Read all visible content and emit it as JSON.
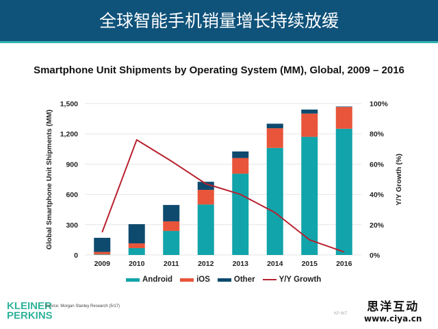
{
  "header": {
    "title": "全球智能手机销量增长持续放缓"
  },
  "footer": {
    "logo_line1": "KLEINER",
    "logo_line2": "PERKINS",
    "source": "Source: Morgan Stanley Research (5/17)",
    "page_tag": "KP INT",
    "watermark_cn": "思洋互动",
    "watermark_url": "www.ciya.cn"
  },
  "colors": {
    "header_bg": "#0f527a",
    "android": "#11a4aa",
    "ios": "#e8553a",
    "other": "#0d4a6e",
    "growth": "#b8202e",
    "brand": "#2fb39a"
  },
  "chart_data": {
    "type": "bar",
    "stacked": true,
    "title": "Smartphone Unit Shipments by Operating System (MM), Global, 2009 – 2016",
    "xlabel": "",
    "ylabel": "Global Smartphone Unit Shipments (MM)",
    "y2label": "Y/Y Growth (%)",
    "categories": [
      "2009",
      "2010",
      "2011",
      "2012",
      "2013",
      "2014",
      "2015",
      "2016"
    ],
    "ylim": [
      0,
      1500
    ],
    "yticks": [
      "0",
      "300",
      "600",
      "900",
      "1,200",
      "1,500"
    ],
    "y2lim": [
      0,
      100
    ],
    "y2ticks": [
      "0%",
      "20%",
      "40%",
      "60%",
      "80%",
      "100%"
    ],
    "grid": true,
    "legend_position": "bottom",
    "series": [
      {
        "name": "Android",
        "axis": "left",
        "kind": "bar",
        "values": [
          5,
          68,
          238,
          500,
          805,
          1060,
          1170,
          1250
        ]
      },
      {
        "name": "iOS",
        "axis": "left",
        "kind": "bar",
        "values": [
          25,
          47,
          95,
          145,
          155,
          195,
          230,
          215
        ]
      },
      {
        "name": "Other",
        "axis": "left",
        "kind": "bar",
        "values": [
          140,
          190,
          162,
          80,
          65,
          45,
          40,
          5
        ]
      },
      {
        "name": "Y/Y Growth",
        "axis": "right",
        "kind": "line",
        "values": [
          15,
          76,
          62,
          47,
          40,
          28,
          10,
          2
        ]
      }
    ]
  }
}
